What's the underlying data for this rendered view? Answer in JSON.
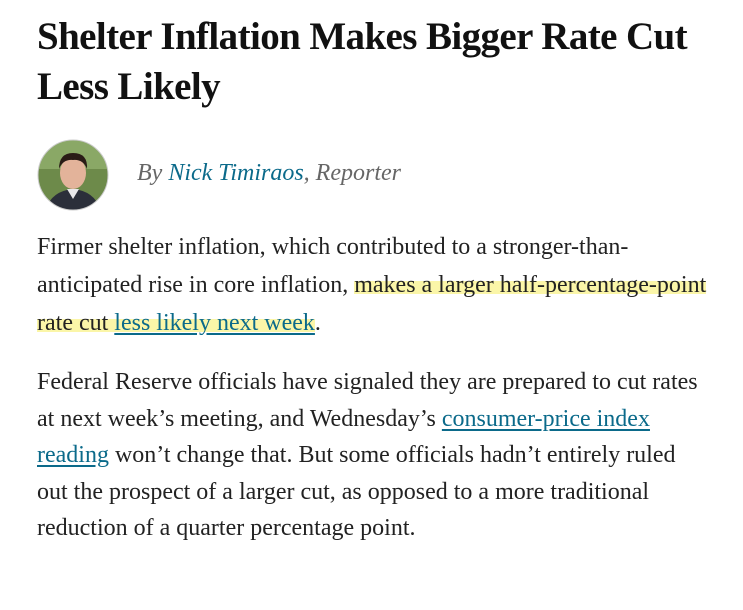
{
  "article": {
    "headline": "Shelter Inflation Makes Bigger Rate Cut Less Likely",
    "byline": {
      "prefix": "By",
      "author": "Nick Timiraos",
      "role": ", Reporter"
    },
    "paragraphs": [
      {
        "runs": [
          {
            "text": "Firmer shelter inflation, which contributed to a stronger-than-anticipated rise in core inflation, ",
            "highlight": false,
            "link": false
          },
          {
            "text": "makes a larger half-percentage-point rate cut ",
            "highlight": true,
            "link": false
          },
          {
            "text": "less likely next week",
            "highlight": true,
            "link": true
          },
          {
            "text": ".",
            "highlight": false,
            "link": false
          }
        ]
      },
      {
        "runs": [
          {
            "text": "Federal Reserve officials have signaled they are prepared to cut rates at next week’s meeting, and Wednesday’s ",
            "highlight": false,
            "link": false
          },
          {
            "text": "consumer-price index reading",
            "highlight": false,
            "link": true
          },
          {
            "text": " won’t change that. But some officials hadn’t entirely ruled out the prospect of a larger cut, as opposed to a more traditional reduction of a quarter percentage point.",
            "highlight": false,
            "link": false
          }
        ]
      }
    ]
  }
}
